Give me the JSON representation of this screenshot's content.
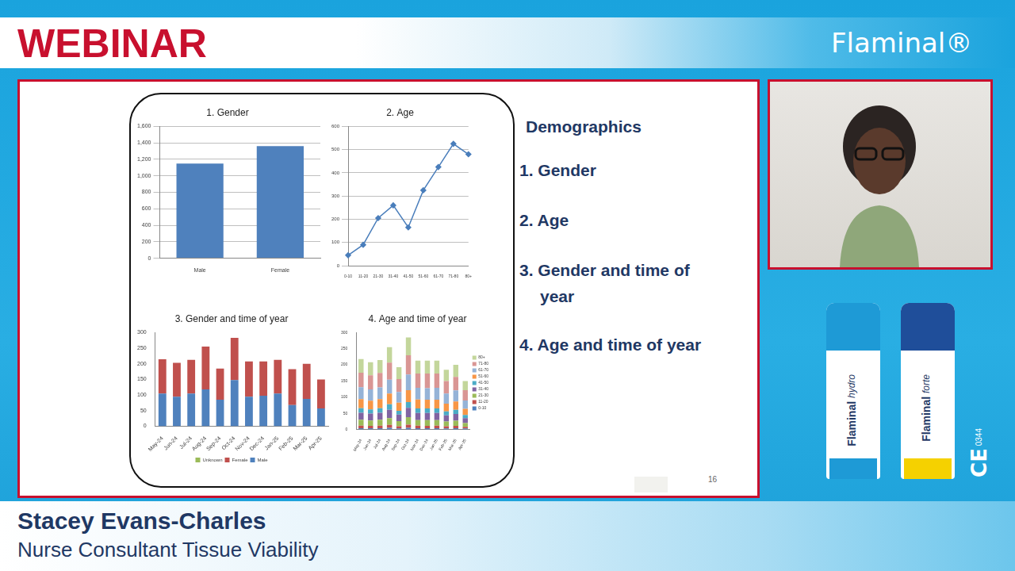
{
  "page": {
    "header": "WEBINAR",
    "brand": "Flaminal®",
    "slide": {
      "heading": "Demographics",
      "items": [
        "1. Gender",
        "2. Age",
        "3. Gender and time of year",
        "4. Age and time of year"
      ],
      "page_number": "16"
    },
    "products": [
      {
        "name": "Flaminal",
        "variant": "hydro"
      },
      {
        "name": "Flaminal",
        "variant": "forte"
      }
    ],
    "ce_mark": {
      "symbol": "CE",
      "number": "0344"
    },
    "presenter": {
      "name": "Stacey Evans-Charles",
      "role": "Nurse Consultant Tissue Viability"
    }
  },
  "chart_data": [
    {
      "type": "bar",
      "title": "1. Gender",
      "categories": [
        "Male",
        "Female"
      ],
      "values": [
        1150,
        1360
      ],
      "color": "#4f81bd",
      "ylim": [
        0,
        1600
      ],
      "yticks": [
        0,
        200,
        400,
        600,
        800,
        1000,
        1200,
        1400,
        1600
      ],
      "grid": true
    },
    {
      "type": "line",
      "title": "2. Age",
      "categories": [
        "0-10",
        "11-20",
        "21-30",
        "31-40",
        "41-50",
        "51-60",
        "61-70",
        "71-80",
        "80+"
      ],
      "values": [
        45,
        90,
        205,
        260,
        165,
        325,
        425,
        525,
        480
      ],
      "color": "#4a7ebb",
      "marker": "diamond",
      "ylim": [
        0,
        600
      ],
      "yticks": [
        0,
        100,
        200,
        300,
        400,
        500,
        600
      ],
      "grid": true
    },
    {
      "type": "bar",
      "title": "3. Gender and time of year",
      "stacked": true,
      "legend": "bottom",
      "grid": false,
      "categories": [
        "May-24",
        "Jun-24",
        "Jul-24",
        "Aug-24",
        "Sep-24",
        "Oct-24",
        "Nov-24",
        "Dec-24",
        "Jan-25",
        "Feb-25",
        "Mar-25",
        "Apr-25"
      ],
      "series": [
        {
          "name": "Male",
          "color": "#4f81bd",
          "values": [
            105,
            95,
            105,
            118,
            85,
            148,
            95,
            98,
            105,
            68,
            88,
            57
          ]
        },
        {
          "name": "Female",
          "color": "#c0504d",
          "values": [
            110,
            108,
            108,
            137,
            100,
            135,
            113,
            110,
            108,
            115,
            112,
            93
          ]
        },
        {
          "name": "Unknown",
          "color": "#9bbb59",
          "values": [
            0,
            0,
            0,
            0,
            0,
            0,
            0,
            0,
            0,
            0,
            0,
            0
          ]
        }
      ],
      "ylim": [
        0,
        300
      ],
      "yticks": [
        0,
        50,
        100,
        150,
        200,
        250,
        300
      ]
    },
    {
      "type": "bar",
      "title": "4. Age and time of year",
      "stacked": true,
      "legend": "right",
      "grid": false,
      "categories": [
        "May-24",
        "Jun-24",
        "Jul-24",
        "Aug-24",
        "Sep-24",
        "Oct-24",
        "Nov-24",
        "Dec-24",
        "Jan-25",
        "Feb-25",
        "Mar-25",
        "Apr-25"
      ],
      "series": [
        {
          "name": "0-10",
          "color": "#4f81bd",
          "values": [
            4,
            4,
            4,
            5,
            3,
            5,
            4,
            4,
            4,
            3,
            4,
            3
          ]
        },
        {
          "name": "11-20",
          "color": "#c0504d",
          "values": [
            8,
            7,
            8,
            9,
            7,
            10,
            8,
            7,
            8,
            7,
            7,
            5
          ]
        },
        {
          "name": "21-30",
          "color": "#9bbb59",
          "values": [
            18,
            17,
            18,
            21,
            16,
            23,
            17,
            18,
            17,
            15,
            16,
            12
          ]
        },
        {
          "name": "31-40",
          "color": "#8064a2",
          "values": [
            22,
            21,
            22,
            26,
            20,
            29,
            22,
            22,
            22,
            19,
            21,
            15
          ]
        },
        {
          "name": "41-50",
          "color": "#4bacc6",
          "values": [
            14,
            13,
            14,
            17,
            12,
            18,
            14,
            14,
            14,
            12,
            13,
            10
          ]
        },
        {
          "name": "51-60",
          "color": "#f79646",
          "values": [
            28,
            27,
            28,
            33,
            25,
            37,
            28,
            27,
            27,
            24,
            26,
            19
          ]
        },
        {
          "name": "61-70",
          "color": "#95b3d7",
          "values": [
            37,
            35,
            36,
            43,
            33,
            48,
            36,
            36,
            37,
            31,
            34,
            26
          ]
        },
        {
          "name": "71-80",
          "color": "#d99694",
          "values": [
            45,
            44,
            45,
            53,
            40,
            60,
            44,
            45,
            44,
            39,
            42,
            32
          ]
        },
        {
          "name": "80+",
          "color": "#c3d69b",
          "values": [
            42,
            40,
            40,
            48,
            37,
            55,
            40,
            40,
            40,
            35,
            37,
            28
          ]
        }
      ],
      "ylim": [
        0,
        300
      ],
      "yticks": [
        0,
        50,
        100,
        150,
        200,
        250,
        300
      ]
    }
  ]
}
